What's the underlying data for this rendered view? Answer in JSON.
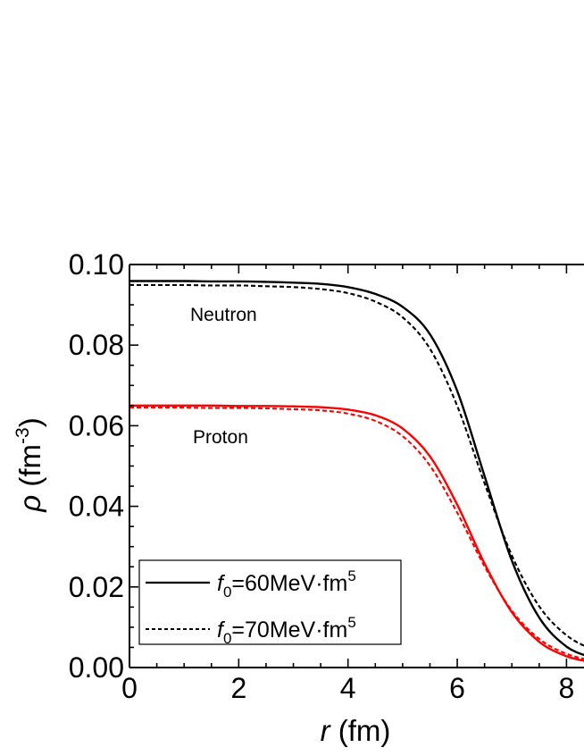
{
  "chart_data": {
    "type": "line",
    "xlabel": {
      "symbol": "r",
      "unit": " (fm)"
    },
    "ylabel": {
      "symbol": "ρ",
      "unit_open": " (fm",
      "unit_sup": "-3",
      "unit_close": ")"
    },
    "xlim": [
      0,
      8.5
    ],
    "ylim": [
      0,
      0.1
    ],
    "x_ticks": [
      "0",
      "2",
      "4",
      "6",
      "8"
    ],
    "y_ticks": [
      "0.00",
      "0.02",
      "0.04",
      "0.06",
      "0.08",
      "0.10"
    ],
    "annotations": {
      "neutron": "Neutron",
      "proton": "Proton"
    },
    "legend": {
      "placement": "bottom-left",
      "entries": [
        {
          "style": "solid",
          "symbol": "f",
          "sub": "0",
          "text": "=60MeV·fm",
          "sup": "5"
        },
        {
          "style": "dashed",
          "symbol": "f",
          "sub": "0",
          "text": "=70MeV·fm",
          "sup": "5"
        }
      ]
    },
    "colors": {
      "neutron": "#000000",
      "proton": "#ff0000",
      "axis": "#000000"
    },
    "series": [
      {
        "group": "neutron",
        "style": "solid",
        "x": [
          0,
          0.5,
          1,
          1.5,
          2,
          2.5,
          3,
          3.5,
          4,
          4.5,
          5,
          5.5,
          6,
          6.5,
          7,
          7.5,
          8,
          8.5
        ],
        "y": [
          0.0959,
          0.0959,
          0.0959,
          0.0958,
          0.0958,
          0.0957,
          0.0955,
          0.0952,
          0.0944,
          0.0927,
          0.0895,
          0.0827,
          0.0686,
          0.0475,
          0.0265,
          0.0124,
          0.0052,
          0.0022
        ]
      },
      {
        "group": "neutron",
        "style": "dashed",
        "x": [
          0,
          0.5,
          1,
          1.5,
          2,
          2.5,
          3,
          3.5,
          4,
          4.5,
          5,
          5.5,
          6,
          6.5,
          7,
          7.5,
          8,
          8.5
        ],
        "y": [
          0.0949,
          0.0949,
          0.0949,
          0.0948,
          0.0948,
          0.0946,
          0.0944,
          0.0939,
          0.0929,
          0.0908,
          0.0869,
          0.0791,
          0.0649,
          0.0457,
          0.0278,
          0.0152,
          0.008,
          0.0042
        ]
      },
      {
        "group": "proton",
        "style": "solid",
        "x": [
          0,
          0.5,
          1,
          1.5,
          2,
          2.5,
          3,
          3.5,
          4,
          4.5,
          5,
          5.5,
          6,
          6.5,
          7,
          7.5,
          8,
          8.5
        ],
        "y": [
          0.065,
          0.065,
          0.065,
          0.065,
          0.0649,
          0.0649,
          0.0648,
          0.0646,
          0.064,
          0.0626,
          0.0593,
          0.0524,
          0.0404,
          0.0258,
          0.0137,
          0.0064,
          0.0028,
          0.0012
        ]
      },
      {
        "group": "proton",
        "style": "dashed",
        "x": [
          0,
          0.5,
          1,
          1.5,
          2,
          2.5,
          3,
          3.5,
          4,
          4.5,
          5,
          5.5,
          6,
          6.5,
          7,
          7.5,
          8,
          8.5
        ],
        "y": [
          0.0645,
          0.0645,
          0.0645,
          0.0644,
          0.0644,
          0.0643,
          0.0641,
          0.0638,
          0.063,
          0.0612,
          0.0574,
          0.0501,
          0.0384,
          0.0251,
          0.0141,
          0.0071,
          0.0034,
          0.0016
        ]
      }
    ]
  }
}
